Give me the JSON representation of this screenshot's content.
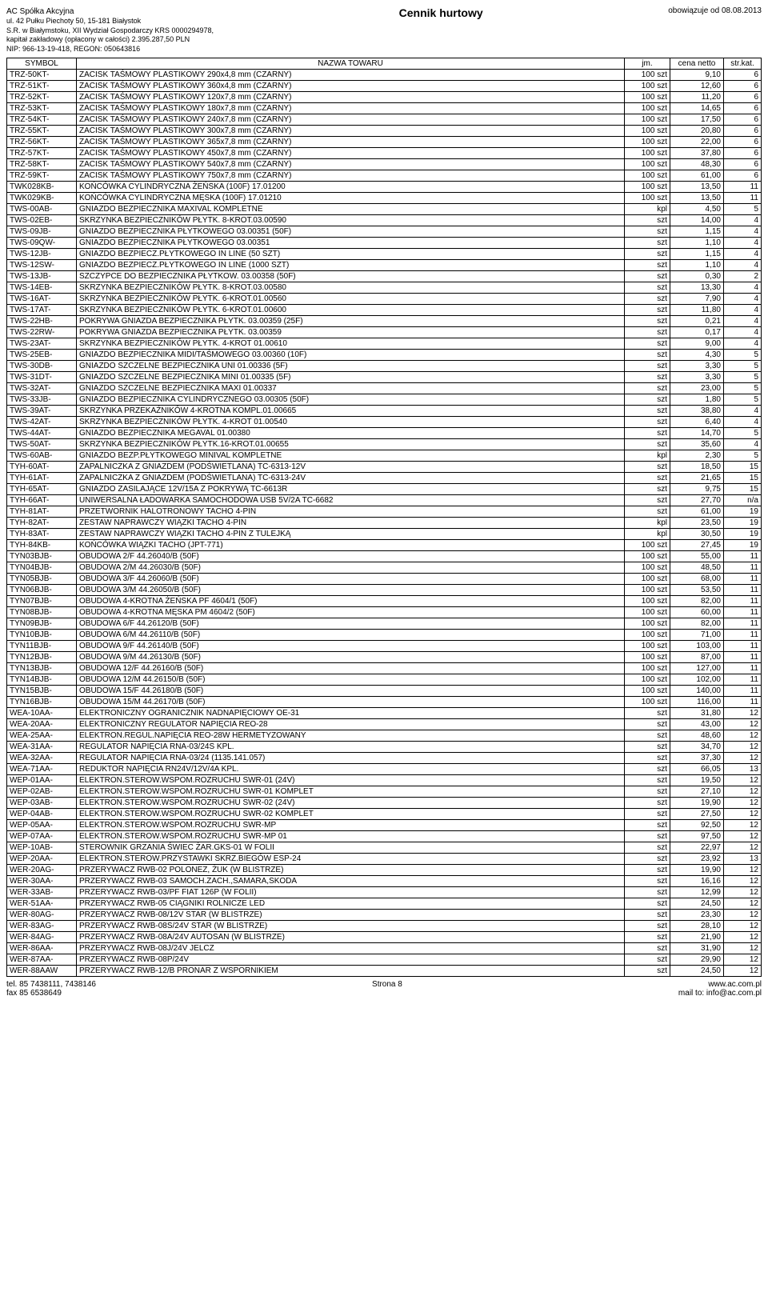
{
  "header": {
    "company_name": "AC Spółka Akcyjna",
    "address": "ul. 42 Pułku Piechoty 50, 15-181 Białystok",
    "registration": "S.R. w Białymstoku, XII Wydział Gospodarczy KRS 0000294978,",
    "capital": "kapitał zakładowy (opłacony w całości) 2.395.287,50 PLN",
    "nip": "NIP: 966-13-19-418, REGON: 050643816",
    "title": "Cennik hurtowy",
    "valid_from": "obowiązuje od 08.08.2013"
  },
  "columns": [
    "SYMBOL",
    "NAZWA TOWARU",
    "jm.",
    "cena netto",
    "str.kat."
  ],
  "rows": [
    [
      "TRZ-50KT-",
      "ZACISK TAŚMOWY PLASTIKOWY 290x4,8 mm (CZARNY)",
      "100 szt",
      "9,10",
      "6"
    ],
    [
      "TRZ-51KT-",
      "ZACISK TAŚMOWY PLASTIKOWY 360x4,8 mm (CZARNY)",
      "100 szt",
      "12,60",
      "6"
    ],
    [
      "TRZ-52KT-",
      "ZACISK TAŚMOWY PLASTIKOWY 120x7,8 mm (CZARNY)",
      "100 szt",
      "11,20",
      "6"
    ],
    [
      "TRZ-53KT-",
      "ZACISK TAŚMOWY PLASTIKOWY 180x7,8 mm (CZARNY)",
      "100 szt",
      "14,65",
      "6"
    ],
    [
      "TRZ-54KT-",
      "ZACISK TAŚMOWY PLASTIKOWY 240x7,8 mm (CZARNY)",
      "100 szt",
      "17,50",
      "6"
    ],
    [
      "TRZ-55KT-",
      "ZACISK TAŚMOWY PLASTIKOWY 300x7,8 mm (CZARNY)",
      "100 szt",
      "20,80",
      "6"
    ],
    [
      "TRZ-56KT-",
      "ZACISK TAŚMOWY PLASTIKOWY 365x7,8 mm (CZARNY)",
      "100 szt",
      "22,00",
      "6"
    ],
    [
      "TRZ-57KT-",
      "ZACISK TAŚMOWY PLASTIKOWY 450x7,8 mm (CZARNY)",
      "100 szt",
      "37,80",
      "6"
    ],
    [
      "TRZ-58KT-",
      "ZACISK TAŚMOWY PLASTIKOWY 540x7,8 mm (CZARNY)",
      "100 szt",
      "48,30",
      "6"
    ],
    [
      "TRZ-59KT-",
      "ZACISK TAŚMOWY PLASTIKOWY 750x7,8 mm (CZARNY)",
      "100 szt",
      "61,00",
      "6"
    ],
    [
      "TWK028KB-",
      "KOŃCÓWKA CYLINDRYCZNA ŻEŃSKA (100F) 17.01200",
      "100 szt",
      "13,50",
      "11"
    ],
    [
      "TWK029KB-",
      "KOŃCÓWKA CYLINDRYCZNA MĘSKA (100F) 17.01210",
      "100 szt",
      "13,50",
      "11"
    ],
    [
      "TWS-00AB-",
      "GNIAZDO BEZPIECZNIKA MAXIVAL KOMPLETNE",
      "kpl",
      "4,50",
      "5"
    ],
    [
      "TWS-02EB-",
      "SKRZYNKA BEZPIECZNIKÓW PŁYTK. 8-KROT.03.00590",
      "szt",
      "14,00",
      "4"
    ],
    [
      "TWS-09JB-",
      "GNIAZDO BEZPIECZNIKA PŁYTKOWEGO 03.00351 (50F)",
      "szt",
      "1,15",
      "4"
    ],
    [
      "TWS-09QW-",
      "GNIAZDO BEZPIECZNIKA PŁYTKOWEGO 03.00351",
      "szt",
      "1,10",
      "4"
    ],
    [
      "TWS-12JB-",
      "GNIAZDO BEZPIECZ.PŁYTKOWEGO IN LINE (50 SZT)",
      "szt",
      "1,15",
      "4"
    ],
    [
      "TWS-12SW-",
      "GNIAZDO BEZPIECZ.PŁYTKOWEGO IN LINE (1000 SZT)",
      "szt",
      "1,10",
      "4"
    ],
    [
      "TWS-13JB-",
      "SZCZYPCE DO BEZPIECZNIKA PŁYTKOW. 03.00358 (50F)",
      "szt",
      "0,30",
      "2"
    ],
    [
      "TWS-14EB-",
      "SKRZYNKA BEZPIECZNIKÓW PŁYTK. 8-KROT.03.00580",
      "szt",
      "13,30",
      "4"
    ],
    [
      "TWS-16AT-",
      "SKRZYNKA BEZPIECZNIKÓW PŁYTK. 6-KROT.01.00560",
      "szt",
      "7,90",
      "4"
    ],
    [
      "TWS-17AT-",
      "SKRZYNKA BEZPIECZNIKÓW PŁYTK. 6-KROT.01.00600",
      "szt",
      "11,80",
      "4"
    ],
    [
      "TWS-22HB-",
      "POKRYWA GNIAZDA BEZPIECZNIKA PŁYTK. 03.00359 (25F)",
      "szt",
      "0,21",
      "4"
    ],
    [
      "TWS-22RW-",
      "POKRYWA GNIAZDA BEZPIECZNIKA PŁYTK. 03.00359",
      "szt",
      "0,17",
      "4"
    ],
    [
      "TWS-23AT-",
      "SKRZYNKA BEZPIECZNIKÓW PŁYTK. 4-KROT 01.00610",
      "szt",
      "9,00",
      "4"
    ],
    [
      "TWS-25EB-",
      "GNIAZDO BEZPIECZNIKA MIDI/TAŚMOWEGO 03.00360 (10F)",
      "szt",
      "4,30",
      "5"
    ],
    [
      "TWS-30DB-",
      "GNIAZDO SZCZELNE BEZPIECZNIKA UNI 01.00336 (5F)",
      "szt",
      "3,30",
      "5"
    ],
    [
      "TWS-31DT-",
      "GNIAZDO SZCZELNE BEZPIECZNIKA MINI 01.00335 (5F)",
      "szt",
      "3,30",
      "5"
    ],
    [
      "TWS-32AT-",
      "GNIAZDO SZCZELNE BEZPIECZNIKA MAXI 01.00337",
      "szt",
      "23,00",
      "5"
    ],
    [
      "TWS-33JB-",
      "GNIAZDO BEZPIECZNIKA CYLINDRYCZNEGO 03.00305 (50F)",
      "szt",
      "1,80",
      "5"
    ],
    [
      "TWS-39AT-",
      "SKRZYNKA PRZEKAŹNIKÓW 4-KROTNA KOMPL.01.00665",
      "szt",
      "38,80",
      "4"
    ],
    [
      "TWS-42AT-",
      "SKRZYNKA BEZPIECZNIKÓW PŁYTK. 4-KROT 01.00540",
      "szt",
      "6,40",
      "4"
    ],
    [
      "TWS-44AT-",
      "GNIAZDO BEZPIECZNIKA MEGAVAL 01.00380",
      "szt",
      "14,70",
      "5"
    ],
    [
      "TWS-50AT-",
      "SKRZYNKA BEZPIECZNIKÓW PŁYTK.16-KROT.01.00655",
      "szt",
      "35,60",
      "4"
    ],
    [
      "TWS-60AB-",
      "GNIAZDO BEZP.PŁYTKOWEGO MINIVAL KOMPLETNE",
      "kpl",
      "2,30",
      "5"
    ],
    [
      "TYH-60AT-",
      "ZAPALNICZKA Z GNIAZDEM (PODŚWIETLANA) TC-6313-12V",
      "szt",
      "18,50",
      "15"
    ],
    [
      "TYH-61AT-",
      "ZAPALNICZKA Z GNIAZDEM (PODŚWIETLANA) TC-6313-24V",
      "szt",
      "21,65",
      "15"
    ],
    [
      "TYH-65AT-",
      "GNIAZDO ZASILAJĄCE 12V/15A Z POKRYWĄ TC-6613R",
      "szt",
      "9,75",
      "15"
    ],
    [
      "TYH-66AT-",
      "UNIWERSALNA ŁADOWARKA SAMOCHODOWA USB 5V/2A TC-6682",
      "szt",
      "27,70",
      "n/a"
    ],
    [
      "TYH-81AT-",
      "PRZETWORNIK HALOTRONOWY TACHO 4-PIN",
      "szt",
      "61,00",
      "19"
    ],
    [
      "TYH-82AT-",
      "ZESTAW NAPRAWCZY WIĄZKI TACHO 4-PIN",
      "kpl",
      "23,50",
      "19"
    ],
    [
      "TYH-83AT-",
      "ZESTAW NAPRAWCZY WIĄZKI TACHO 4-PIN Z TULEJKĄ",
      "kpl",
      "30,50",
      "19"
    ],
    [
      "TYH-84KB-",
      "KOŃCÓWKA WIĄZKI TACHO (JPT-771)",
      "100 szt",
      "27,45",
      "19"
    ],
    [
      "TYN03BJB-",
      "OBUDOWA 2/F 44.26040/B (50F)",
      "100 szt",
      "55,00",
      "11"
    ],
    [
      "TYN04BJB-",
      "OBUDOWA 2/M 44.26030/B (50F)",
      "100 szt",
      "48,50",
      "11"
    ],
    [
      "TYN05BJB-",
      "OBUDOWA 3/F 44.26060/B (50F)",
      "100 szt",
      "68,00",
      "11"
    ],
    [
      "TYN06BJB-",
      "OBUDOWA 3/M 44.26050/B (50F)",
      "100 szt",
      "53,50",
      "11"
    ],
    [
      "TYN07BJB-",
      "OBUDOWA 4-KROTNA ŻEŃSKA PF 4604/1 (50F)",
      "100 szt",
      "82,00",
      "11"
    ],
    [
      "TYN08BJB-",
      "OBUDOWA 4-KROTNA MĘSKA PM 4604/2 (50F)",
      "100 szt",
      "60,00",
      "11"
    ],
    [
      "TYN09BJB-",
      "OBUDOWA 6/F 44.26120/B (50F)",
      "100 szt",
      "82,00",
      "11"
    ],
    [
      "TYN10BJB-",
      "OBUDOWA 6/M 44.26110/B (50F)",
      "100 szt",
      "71,00",
      "11"
    ],
    [
      "TYN11BJB-",
      "OBUDOWA 9/F 44.26140/B (50F)",
      "100 szt",
      "103,00",
      "11"
    ],
    [
      "TYN12BJB-",
      "OBUDOWA 9/M 44.26130/B (50F)",
      "100 szt",
      "87,00",
      "11"
    ],
    [
      "TYN13BJB-",
      "OBUDOWA 12/F 44.26160/B (50F)",
      "100 szt",
      "127,00",
      "11"
    ],
    [
      "TYN14BJB-",
      "OBUDOWA 12/M 44.26150/B (50F)",
      "100 szt",
      "102,00",
      "11"
    ],
    [
      "TYN15BJB-",
      "OBUDOWA 15/F 44.26180/B (50F)",
      "100 szt",
      "140,00",
      "11"
    ],
    [
      "TYN16BJB-",
      "OBUDOWA 15/M 44.26170/B (50F)",
      "100 szt",
      "116,00",
      "11"
    ],
    [
      "WEA-10AA-",
      "ELEKTRONICZNY OGRANICZNIK NADNAPIĘCIOWY OE-31",
      "szt",
      "31,80",
      "12"
    ],
    [
      "WEA-20AA-",
      "ELEKTRONICZNY REGULATOR NAPIĘCIA REO-28",
      "szt",
      "43,00",
      "12"
    ],
    [
      "WEA-25AA-",
      "ELEKTRON.REGUL.NAPIĘCIA REO-28W HERMETYZOWANY",
      "szt",
      "48,60",
      "12"
    ],
    [
      "WEA-31AA-",
      "REGULATOR NAPIĘCIA RNA-03/24S KPL.",
      "szt",
      "34,70",
      "12"
    ],
    [
      "WEA-32AA-",
      "REGULATOR NAPIĘCIA RNA-03/24 (1135.141.057)",
      "szt",
      "37,30",
      "12"
    ],
    [
      "WEA-71AA-",
      "REDUKTOR NAPIĘCIA RN24V/12V/4A KPL.",
      "szt",
      "66,05",
      "13"
    ],
    [
      "WEP-01AA-",
      "ELEKTRON.STEROW.WSPOM.ROZRUCHU SWR-01 (24V)",
      "szt",
      "19,50",
      "12"
    ],
    [
      "WEP-02AB-",
      "ELEKTRON.STEROW.WSPOM.ROZRUCHU SWR-01 KOMPLET",
      "szt",
      "27,10",
      "12"
    ],
    [
      "WEP-03AB-",
      "ELEKTRON.STEROW.WSPOM.ROZRUCHU SWR-02 (24V)",
      "szt",
      "19,90",
      "12"
    ],
    [
      "WEP-04AB-",
      "ELEKTRON.STEROW.WSPOM.ROZRUCHU SWR-02 KOMPLET",
      "szt",
      "27,50",
      "12"
    ],
    [
      "WEP-05AA-",
      "ELEKTRON.STEROW.WSPOM.ROZRUCHU SWR-MP",
      "szt",
      "92,50",
      "12"
    ],
    [
      "WEP-07AA-",
      "ELEKTRON.STEROW.WSPOM.ROZRUCHU SWR-MP 01",
      "szt",
      "97,50",
      "12"
    ],
    [
      "WEP-10AB-",
      "STEROWNIK GRZANIA ŚWIEC ŻAR.GKS-01 W FOLII",
      "szt",
      "22,97",
      "12"
    ],
    [
      "WEP-20AA-",
      "ELEKTRON.STEROW.PRZYSTAWKI SKRZ.BIEGÓW ESP-24",
      "szt",
      "23,92",
      "13"
    ],
    [
      "WER-20AG-",
      "PRZERYWACZ RWB-02 POLONEZ, ŻUK (W BLISTRZE)",
      "szt",
      "19,90",
      "12"
    ],
    [
      "WER-30AA-",
      "PRZERYWACZ RWB-03 SAMOCH.ZACH.,SAMARA,SKODA",
      "szt",
      "16,16",
      "12"
    ],
    [
      "WER-33AB-",
      "PRZERYWACZ RWB-03/PF FIAT 126P (W FOLII)",
      "szt",
      "12,99",
      "12"
    ],
    [
      "WER-51AA-",
      "PRZERYWACZ RWB-05 CIĄGNIKI ROLNICZE LED",
      "szt",
      "24,50",
      "12"
    ],
    [
      "WER-80AG-",
      "PRZERYWACZ RWB-08/12V STAR (W BLISTRZE)",
      "szt",
      "23,30",
      "12"
    ],
    [
      "WER-83AG-",
      "PRZERYWACZ RWB-08S/24V STAR (W BLISTRZE)",
      "szt",
      "28,10",
      "12"
    ],
    [
      "WER-84AG-",
      "PRZERYWACZ RWB-08A/24V AUTOSAN (W BLISTRZE)",
      "szt",
      "21,90",
      "12"
    ],
    [
      "WER-86AA-",
      "PRZERYWACZ RWB-08J/24V JELCZ",
      "szt",
      "31,90",
      "12"
    ],
    [
      "WER-87AA-",
      "PRZERYWACZ RWB-08P/24V",
      "szt",
      "29,90",
      "12"
    ],
    [
      "WER-88AAW",
      "PRZERYWACZ RWB-12/B PRONAR Z WSPORNIKIEM",
      "szt",
      "24,50",
      "12"
    ]
  ],
  "footer": {
    "tel": "tel. 85 7438111, 7438146",
    "fax": "fax 85 6538649",
    "page": "Strona 8",
    "www": "www.ac.com.pl",
    "mail": "mail to: info@ac.com.pl"
  }
}
